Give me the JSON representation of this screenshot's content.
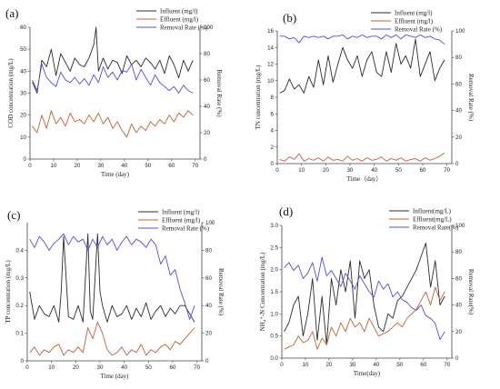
{
  "colors": {
    "influent": "#2b2b2b",
    "effluent": "#c0603a",
    "removal": "#4f4fd6"
  },
  "chart_data": [
    {
      "id": "a",
      "panel_label": "(a)",
      "type": "line",
      "xlabel": "Time (day)",
      "ylabel_left": "COD concentration  (mg/L)",
      "ylabel_right": "Removal Rate (%)",
      "xlim": [
        0,
        72
      ],
      "ylim_left": [
        0,
        60
      ],
      "ylim_right": [
        0,
        100
      ],
      "xticks": [
        0,
        10,
        20,
        30,
        40,
        50,
        60,
        70
      ],
      "yticks_left": [
        0,
        10,
        20,
        30,
        40,
        50,
        60
      ],
      "yticks_right": [
        0,
        20,
        40,
        60,
        80,
        100
      ],
      "legend_position": "top-right",
      "series": [
        {
          "name": "Influent (mg/l)",
          "color_key": "influent",
          "axis": "left",
          "x": [
            1,
            3,
            5,
            7,
            9,
            11,
            13,
            15,
            17,
            19,
            21,
            23,
            25,
            27,
            28,
            29,
            31,
            33,
            35,
            37,
            39,
            41,
            43,
            45,
            47,
            49,
            51,
            53,
            55,
            57,
            59,
            61,
            63,
            65,
            67,
            69
          ],
          "y": [
            35,
            30,
            45,
            42,
            50,
            38,
            48,
            44,
            40,
            46,
            43,
            42,
            46,
            52,
            60,
            40,
            46,
            41,
            45,
            44,
            39,
            47,
            43,
            45,
            42,
            46,
            44,
            41,
            45,
            39,
            47,
            43,
            37,
            45,
            40,
            45
          ]
        },
        {
          "name": "Effluent (mg/l)",
          "color_key": "effluent",
          "axis": "left",
          "x": [
            1,
            3,
            5,
            7,
            9,
            11,
            13,
            15,
            17,
            19,
            21,
            23,
            25,
            27,
            29,
            31,
            33,
            35,
            37,
            39,
            41,
            43,
            45,
            47,
            49,
            51,
            53,
            55,
            57,
            59,
            61,
            63,
            65,
            67,
            69
          ],
          "y": [
            15,
            12,
            20,
            14,
            22,
            16,
            19,
            15,
            21,
            17,
            18,
            16,
            20,
            17,
            21,
            16,
            19,
            14,
            17,
            13,
            10,
            16,
            12,
            15,
            13,
            17,
            15,
            18,
            16,
            20,
            17,
            21,
            19,
            22,
            20
          ]
        },
        {
          "name": "Removal Rate (%)",
          "color_key": "removal",
          "axis": "right",
          "x": [
            1,
            3,
            5,
            7,
            9,
            11,
            13,
            15,
            17,
            19,
            21,
            23,
            25,
            27,
            29,
            31,
            33,
            35,
            37,
            39,
            41,
            43,
            45,
            47,
            49,
            51,
            53,
            55,
            57,
            59,
            61,
            63,
            65,
            67,
            69
          ],
          "y": [
            60,
            52,
            72,
            62,
            58,
            55,
            66,
            60,
            58,
            62,
            57,
            61,
            56,
            64,
            58,
            70,
            62,
            66,
            60,
            67,
            66,
            72,
            60,
            68,
            62,
            56,
            64,
            58,
            55,
            52,
            55,
            50,
            56,
            52,
            50
          ]
        }
      ]
    },
    {
      "id": "b",
      "panel_label": "(b)",
      "type": "line",
      "xlabel": "Time（day）",
      "ylabel_left": "TN concentration  (mg/L)",
      "ylabel_right": "Removal Rate (%)",
      "xlim": [
        0,
        72
      ],
      "ylim_left": [
        0,
        16
      ],
      "ylim_right": [
        0,
        100
      ],
      "xticks": [
        0,
        10,
        20,
        30,
        40,
        50,
        60,
        70
      ],
      "yticks_left": [
        0,
        2,
        4,
        6,
        8,
        10,
        12,
        14,
        16
      ],
      "yticks_right": [
        0,
        20,
        40,
        60,
        80,
        100
      ],
      "legend_position": "top-right",
      "series": [
        {
          "name": "Influent (mg/l)",
          "color_key": "influent",
          "axis": "left",
          "x": [
            1,
            3,
            5,
            7,
            9,
            11,
            13,
            15,
            17,
            19,
            21,
            23,
            25,
            27,
            29,
            31,
            33,
            35,
            37,
            39,
            41,
            43,
            45,
            47,
            49,
            51,
            53,
            55,
            57,
            59,
            61,
            63,
            65,
            67,
            69
          ],
          "y": [
            8.5,
            8.8,
            10.2,
            9.0,
            9.5,
            8.5,
            10.5,
            9.2,
            12.5,
            9.5,
            13.0,
            9.8,
            12.0,
            14.0,
            12.5,
            11.5,
            13.0,
            10.5,
            12.5,
            13.5,
            11.0,
            10.5,
            13.5,
            11.0,
            14.5,
            12.0,
            13.0,
            11.5,
            15.0,
            10.5,
            12.0,
            13.5,
            10.0,
            11.5,
            12.5
          ]
        },
        {
          "name": "Effluent (mg/l)",
          "color_key": "effluent",
          "axis": "left",
          "x": [
            1,
            3,
            5,
            7,
            9,
            11,
            13,
            15,
            17,
            19,
            21,
            23,
            25,
            27,
            29,
            31,
            33,
            35,
            37,
            39,
            41,
            43,
            45,
            47,
            49,
            51,
            53,
            55,
            57,
            59,
            61,
            63,
            65,
            67,
            69
          ],
          "y": [
            0.5,
            0.3,
            0.8,
            0.5,
            1.2,
            0.3,
            0.6,
            0.4,
            0.7,
            0.3,
            0.8,
            0.4,
            0.5,
            0.3,
            0.9,
            0.4,
            0.6,
            0.3,
            0.7,
            0.4,
            0.5,
            0.8,
            0.3,
            0.6,
            0.4,
            0.7,
            0.3,
            0.5,
            0.6,
            0.3,
            0.7,
            0.4,
            0.6,
            0.9,
            1.3
          ]
        },
        {
          "name": "Removal Rate (%)",
          "color_key": "removal",
          "axis": "right",
          "x": [
            1,
            3,
            5,
            7,
            9,
            11,
            13,
            15,
            17,
            19,
            21,
            23,
            25,
            27,
            29,
            31,
            33,
            35,
            37,
            39,
            41,
            43,
            45,
            47,
            49,
            51,
            53,
            55,
            57,
            59,
            61,
            63,
            65,
            67,
            69
          ],
          "y": [
            96,
            96,
            94,
            95,
            91,
            96,
            95,
            96,
            95,
            96,
            94,
            96,
            96,
            97,
            94,
            96,
            95,
            97,
            95,
            96,
            96,
            94,
            97,
            95,
            97,
            94,
            97,
            96,
            95,
            97,
            95,
            96,
            94,
            93,
            90
          ]
        }
      ]
    },
    {
      "id": "c",
      "panel_label": "(c)",
      "type": "line",
      "xlabel": "Time (day)",
      "ylabel_left": "TP concentration  (mg/L)",
      "ylabel_right": "Removal Rate (%)",
      "xlim": [
        0,
        72
      ],
      "ylim_left": [
        0,
        0.5
      ],
      "ylim_right": [
        0,
        100
      ],
      "xticks": [
        0,
        10,
        20,
        30,
        40,
        50,
        60,
        70
      ],
      "yticks_left": [
        0,
        0.1,
        0.2,
        0.3,
        0.4
      ],
      "yticks_right": [
        0,
        20,
        40,
        60,
        80,
        100
      ],
      "legend_position": "top-right",
      "series": [
        {
          "name": "Influent (mg/l)",
          "color_key": "influent",
          "axis": "left",
          "x": [
            1,
            3,
            5,
            7,
            9,
            11,
            13,
            14,
            15,
            17,
            19,
            21,
            23,
            24,
            25,
            26,
            27,
            29,
            30,
            31,
            33,
            35,
            37,
            39,
            41,
            43,
            45,
            47,
            49,
            51,
            53,
            55,
            57,
            59,
            61,
            63,
            65,
            67,
            69
          ],
          "y": [
            0.25,
            0.15,
            0.2,
            0.17,
            0.16,
            0.2,
            0.14,
            0.25,
            0.45,
            0.16,
            0.15,
            0.2,
            0.14,
            0.3,
            0.46,
            0.18,
            0.15,
            0.46,
            0.25,
            0.2,
            0.14,
            0.2,
            0.16,
            0.17,
            0.2,
            0.15,
            0.19,
            0.16,
            0.21,
            0.15,
            0.18,
            0.2,
            0.16,
            0.19,
            0.17,
            0.2,
            0.2,
            0.17,
            0.14
          ]
        },
        {
          "name": "Effluent (mg/l)",
          "color_key": "effluent",
          "axis": "left",
          "x": [
            1,
            3,
            5,
            7,
            9,
            11,
            13,
            15,
            17,
            19,
            21,
            23,
            25,
            27,
            29,
            31,
            33,
            35,
            37,
            39,
            41,
            43,
            45,
            47,
            49,
            51,
            53,
            55,
            57,
            59,
            61,
            63,
            65,
            67,
            69
          ],
          "y": [
            0.03,
            0.05,
            0.02,
            0.04,
            0.03,
            0.05,
            0.06,
            0.02,
            0.04,
            0.03,
            0.05,
            0.03,
            0.12,
            0.08,
            0.14,
            0.1,
            0.04,
            0.02,
            0.03,
            0.05,
            0.02,
            0.04,
            0.03,
            0.06,
            0.02,
            0.04,
            0.03,
            0.05,
            0.06,
            0.04,
            0.07,
            0.06,
            0.08,
            0.1,
            0.12
          ]
        },
        {
          "name": "Removal Rate (%)",
          "color_key": "removal",
          "axis": "right",
          "x": [
            1,
            3,
            5,
            7,
            9,
            11,
            13,
            15,
            17,
            19,
            21,
            23,
            25,
            27,
            29,
            31,
            33,
            35,
            37,
            39,
            41,
            43,
            45,
            47,
            49,
            51,
            53,
            55,
            57,
            59,
            61,
            63,
            65,
            67,
            69
          ],
          "y": [
            88,
            82,
            90,
            86,
            80,
            85,
            88,
            92,
            84,
            90,
            86,
            88,
            80,
            88,
            82,
            90,
            84,
            88,
            80,
            86,
            90,
            84,
            88,
            86,
            82,
            88,
            84,
            70,
            76,
            62,
            66,
            52,
            42,
            30,
            40
          ]
        }
      ]
    },
    {
      "id": "d",
      "panel_label": "(d)",
      "type": "line",
      "xlabel": "Time(day)",
      "ylabel_left": "NH₄⁺-N Concentration  (mg/L)",
      "ylabel_right": "Removal Rate(%)",
      "xlim": [
        0,
        72
      ],
      "ylim_left": [
        0,
        3.0
      ],
      "ylim_right": [
        0,
        100
      ],
      "xticks": [
        0,
        10,
        20,
        30,
        40,
        50,
        60,
        70
      ],
      "yticks_left": [
        0.0,
        0.5,
        1.0,
        1.5,
        2.0,
        2.5,
        3.0
      ],
      "yticks_right": [
        0,
        20,
        40,
        60,
        80,
        100
      ],
      "legend_position": "top-right",
      "series": [
        {
          "name": "Influent(mg/L)",
          "color_key": "influent",
          "axis": "left",
          "x": [
            1,
            3,
            5,
            7,
            9,
            11,
            13,
            15,
            17,
            19,
            21,
            23,
            25,
            27,
            29,
            31,
            33,
            35,
            37,
            39,
            41,
            43,
            45,
            47,
            49,
            51,
            53,
            55,
            57,
            59,
            61,
            63,
            65,
            67,
            69
          ],
          "y": [
            0.6,
            0.8,
            1.2,
            1.4,
            0.5,
            1.0,
            1.8,
            0.4,
            1.4,
            0.3,
            1.8,
            1.2,
            2.0,
            1.5,
            2.2,
            0.9,
            2.2,
            1.8,
            2.0,
            1.2,
            0.7,
            0.6,
            1.0,
            0.9,
            1.3,
            1.4,
            1.6,
            1.8,
            2.0,
            2.3,
            2.6,
            1.6,
            2.2,
            1.2,
            1.4
          ]
        },
        {
          "name": "Effluent(mg/L)",
          "color_key": "effluent",
          "axis": "left",
          "x": [
            1,
            3,
            5,
            7,
            9,
            11,
            13,
            15,
            17,
            19,
            21,
            23,
            25,
            27,
            29,
            31,
            33,
            35,
            37,
            39,
            41,
            43,
            45,
            47,
            49,
            51,
            53,
            55,
            57,
            59,
            61,
            63,
            65,
            67,
            69
          ],
          "y": [
            0.2,
            0.25,
            0.3,
            0.5,
            0.35,
            0.4,
            0.6,
            0.2,
            0.45,
            0.3,
            0.7,
            0.5,
            0.8,
            0.6,
            0.9,
            0.7,
            0.8,
            0.6,
            0.9,
            0.7,
            0.5,
            0.55,
            0.6,
            0.7,
            0.8,
            0.7,
            0.9,
            1.0,
            1.1,
            1.3,
            1.5,
            1.2,
            1.6,
            1.3,
            1.5
          ]
        },
        {
          "name": "Removal Rate(%)",
          "color_key": "removal",
          "axis": "right",
          "x": [
            1,
            3,
            5,
            7,
            9,
            11,
            13,
            15,
            17,
            19,
            21,
            23,
            25,
            27,
            29,
            31,
            33,
            35,
            37,
            39,
            41,
            43,
            45,
            47,
            49,
            51,
            53,
            55,
            57,
            59,
            61,
            63,
            65,
            67,
            69
          ],
          "y": [
            68,
            72,
            66,
            70,
            60,
            64,
            72,
            58,
            76,
            62,
            66,
            60,
            54,
            64,
            58,
            52,
            62,
            56,
            50,
            46,
            58,
            52,
            56,
            46,
            50,
            44,
            42,
            38,
            36,
            40,
            32,
            30,
            26,
            14,
            20
          ]
        }
      ]
    }
  ]
}
